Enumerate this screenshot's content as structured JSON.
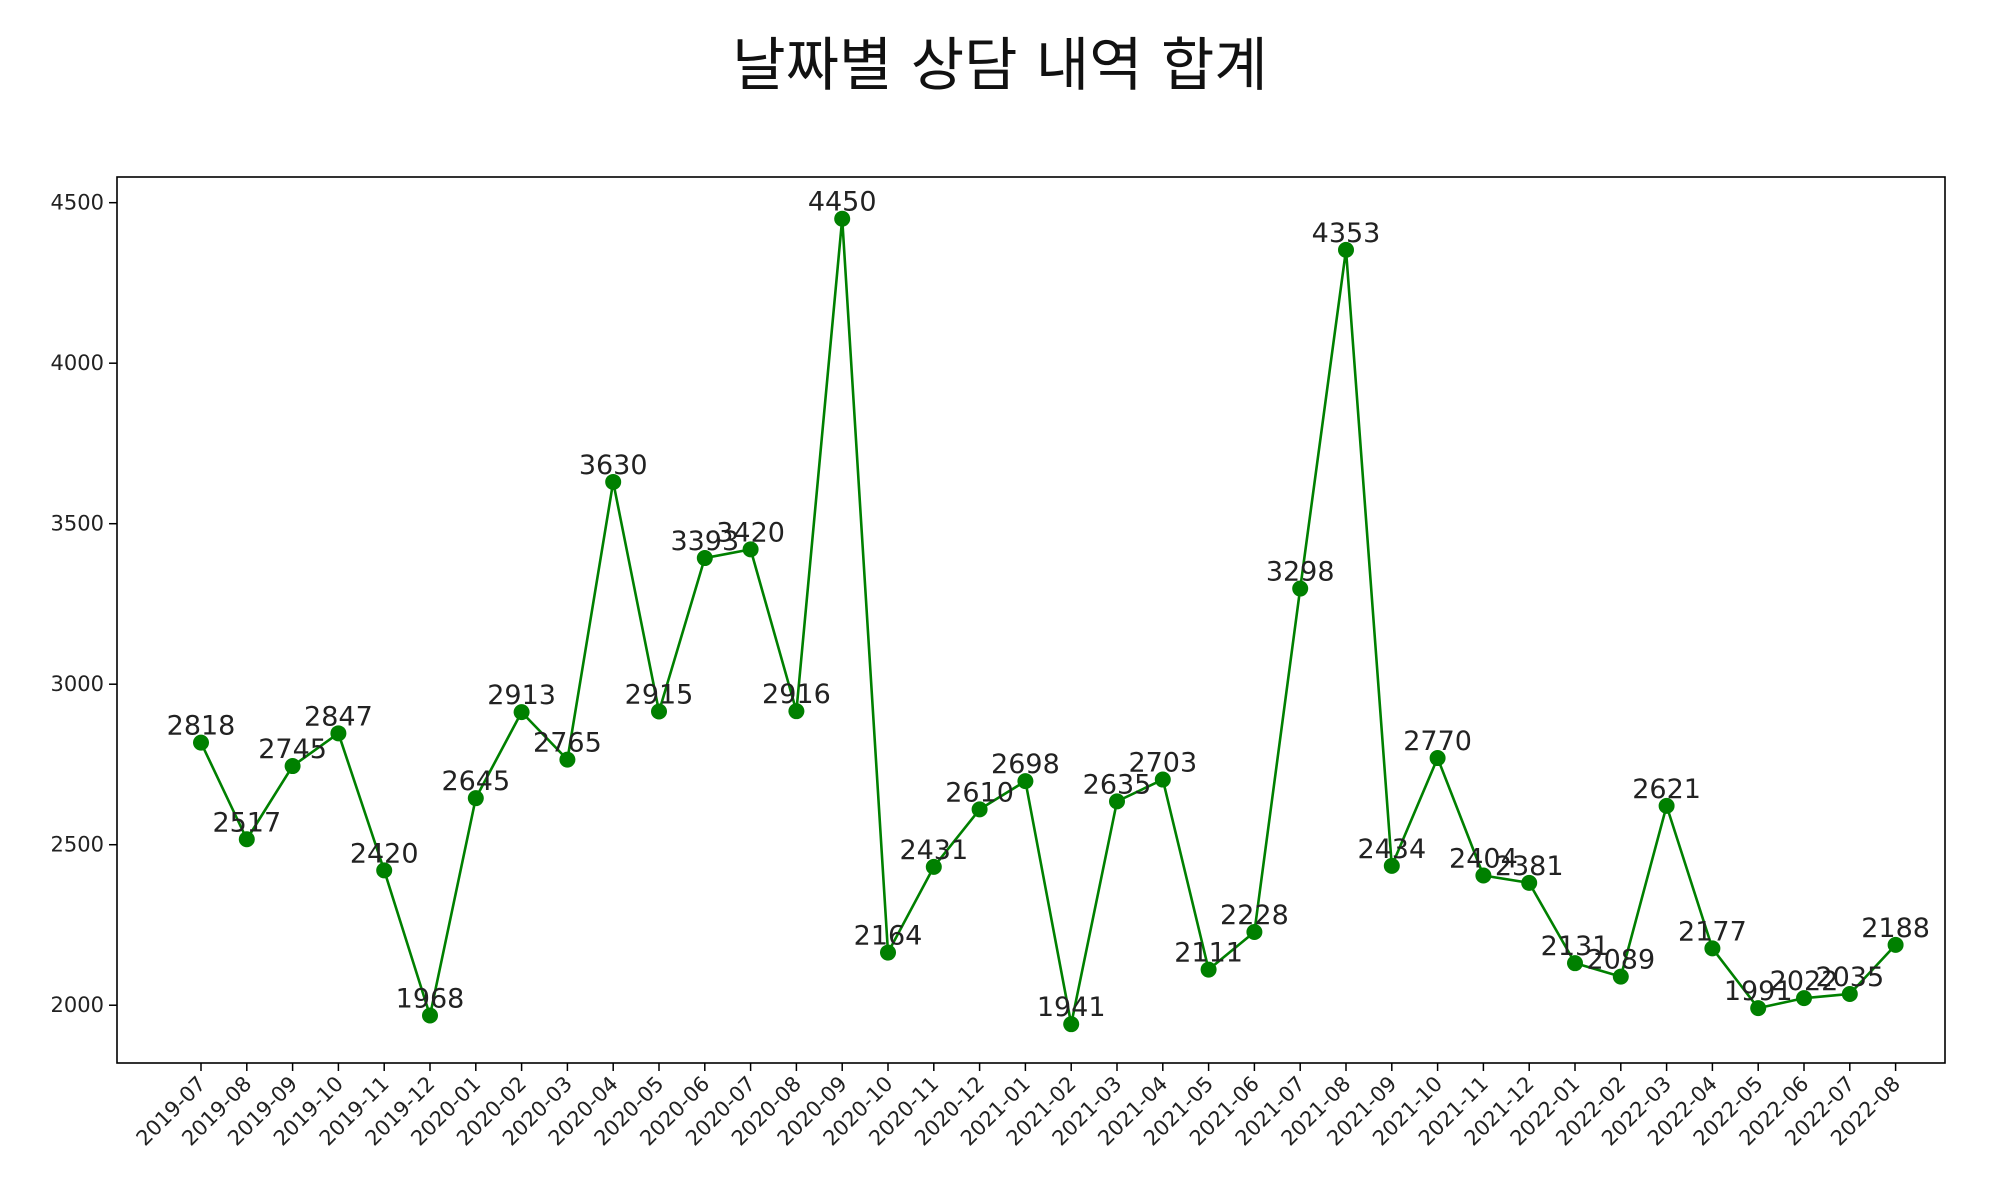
{
  "chart_data": {
    "type": "line",
    "title": "날짜별 상담 내역 합계",
    "xlabel": "",
    "ylabel": "",
    "color": "#008000",
    "marker": "circle",
    "grid": false,
    "ylim": [
      1820,
      4580
    ],
    "yticks": [
      2000,
      2500,
      3000,
      3500,
      4000,
      4500
    ],
    "categories": [
      "2019-07",
      "2019-08",
      "2019-09",
      "2019-10",
      "2019-11",
      "2019-12",
      "2020-01",
      "2020-02",
      "2020-03",
      "2020-04",
      "2020-05",
      "2020-06",
      "2020-07",
      "2020-08",
      "2020-09",
      "2020-10",
      "2020-11",
      "2020-12",
      "2021-01",
      "2021-02",
      "2021-03",
      "2021-04",
      "2021-05",
      "2021-06",
      "2021-07",
      "2021-08",
      "2021-09",
      "2021-10",
      "2021-11",
      "2021-12",
      "2022-01",
      "2022-02",
      "2022-03",
      "2022-04",
      "2022-05",
      "2022-06",
      "2022-07",
      "2022-08"
    ],
    "values": [
      2818,
      2517,
      2745,
      2847,
      2420,
      1968,
      2645,
      2913,
      2765,
      3630,
      2915,
      3393,
      3420,
      2916,
      4450,
      2164,
      2431,
      2610,
      2698,
      1941,
      2635,
      2703,
      2111,
      2228,
      3298,
      4353,
      2434,
      2770,
      2404,
      2381,
      2131,
      2089,
      2621,
      2177,
      1991,
      2022,
      2035,
      2188
    ]
  }
}
